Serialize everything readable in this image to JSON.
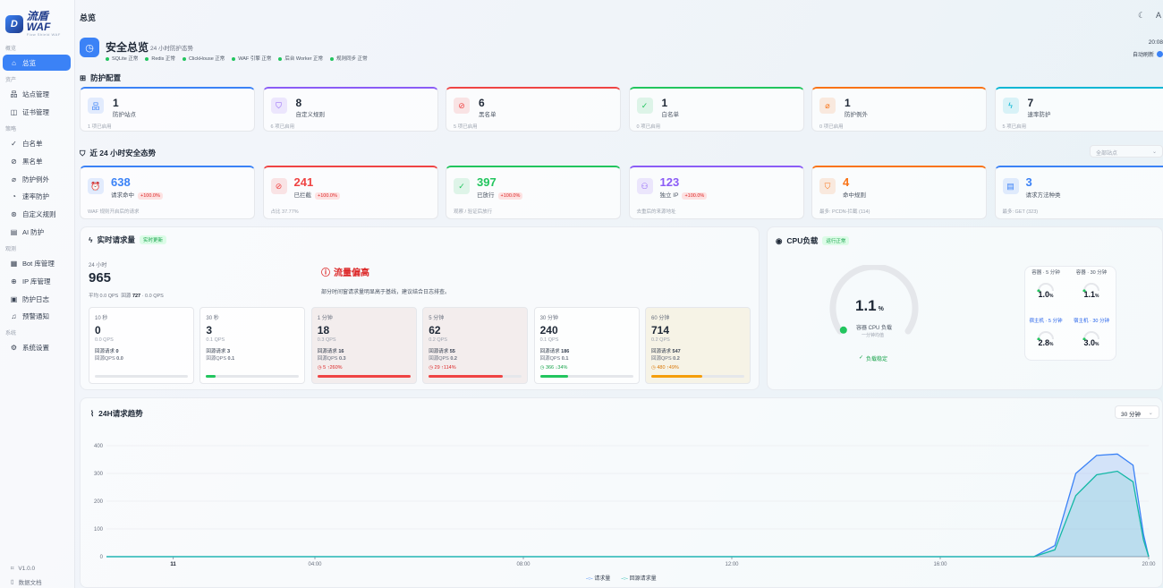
{
  "brand": {
    "name": "流盾 WAF",
    "tagline": "Flow Shield WAF"
  },
  "topbar": {
    "title": "总览"
  },
  "sidebar": {
    "groups": [
      "概览",
      "资产",
      "策略",
      "观测",
      "系统"
    ],
    "items": [
      {
        "label": "总览",
        "icon": "dashboard-icon"
      },
      {
        "label": "站点管理",
        "icon": "site-icon"
      },
      {
        "label": "证书管理",
        "icon": "cert-icon"
      },
      {
        "label": "白名单",
        "icon": "check-icon"
      },
      {
        "label": "黑名单",
        "icon": "block-icon"
      },
      {
        "label": "防护例外",
        "icon": "exception-icon"
      },
      {
        "label": "速率防护",
        "icon": "rate-icon"
      },
      {
        "label": "自定义规则",
        "icon": "rule-icon"
      },
      {
        "label": "AI 防护",
        "icon": "ai-icon"
      },
      {
        "label": "Bot 库管理",
        "icon": "bot-icon"
      },
      {
        "label": "IP 库管理",
        "icon": "globe-icon"
      },
      {
        "label": "防护日志",
        "icon": "log-icon"
      },
      {
        "label": "预警通知",
        "icon": "bell-icon"
      },
      {
        "label": "系统设置",
        "icon": "gear-icon"
      }
    ],
    "version": "V1.0.0",
    "docs": "数据文档"
  },
  "hero": {
    "title": "安全总览",
    "subtitle": "24 小时防护态势",
    "statuses": [
      "SQLite 正常",
      "Redis 正常",
      "ClickHouse 正常",
      "WAF 引擎 正常",
      "后台 Worker 正常",
      "规则同步 正常"
    ],
    "time": "20:08",
    "autorefresh": "自动刷新"
  },
  "protection": {
    "title": "防护配置",
    "cards": [
      {
        "num": "1",
        "label": "防护站点",
        "foot": "1 项已启用",
        "color": "#3b82f6",
        "icon": "site-icon",
        "glyph": "品"
      },
      {
        "num": "8",
        "label": "自定义规则",
        "foot": "6 项已启用",
        "color": "#8b5cf6",
        "icon": "shield-icon",
        "glyph": "⛉"
      },
      {
        "num": "6",
        "label": "黑名单",
        "foot": "5 项已启用",
        "color": "#ef4444",
        "icon": "block-icon",
        "glyph": "⊘"
      },
      {
        "num": "1",
        "label": "白名单",
        "foot": "0 项已启用",
        "color": "#22c55e",
        "icon": "check-icon",
        "glyph": "✓"
      },
      {
        "num": "1",
        "label": "防护例外",
        "foot": "0 项已启用",
        "color": "#f97316",
        "icon": "exception-icon",
        "glyph": "⌀"
      },
      {
        "num": "7",
        "label": "速率防护",
        "foot": "5 项已启用",
        "color": "#06b6d4",
        "icon": "bolt-icon",
        "glyph": "ϟ"
      }
    ]
  },
  "security": {
    "title": "近 24 小时安全态势",
    "select_placeholder": "全部站点",
    "cards": [
      {
        "num": "638",
        "label": "请求命中",
        "badge": "+100.0%",
        "foot": "WAF 规则开启后的请求",
        "color": "#3b82f6",
        "icon": "alarm-icon",
        "glyph": "⏰"
      },
      {
        "num": "241",
        "label": "已拦截",
        "badge": "+100.0%",
        "foot": "占比 37.77%",
        "color": "#ef4444",
        "icon": "block-icon",
        "glyph": "⊘"
      },
      {
        "num": "397",
        "label": "已放行",
        "badge": "+100.0%",
        "foot": "观察 / 验证后放行",
        "color": "#22c55e",
        "icon": "check-icon",
        "glyph": "✓"
      },
      {
        "num": "123",
        "label": "独立 IP",
        "badge": "+100.0%",
        "foot": "去重后的来源地址",
        "color": "#8b5cf6",
        "icon": "user-icon",
        "glyph": "⚇"
      },
      {
        "num": "4",
        "label": "命中规则",
        "badge": "",
        "foot": "最多: PCDN-拦截 (114)",
        "color": "#f97316",
        "icon": "shield-icon",
        "glyph": "⛉"
      },
      {
        "num": "3",
        "label": "请求方法种类",
        "badge": "",
        "foot": "最多: GET (323)",
        "color": "#3b82f6",
        "icon": "file-icon",
        "glyph": "▤"
      }
    ]
  },
  "realtime": {
    "title": "实时请求量",
    "tag": "实时更新",
    "period": "24 小时",
    "total": "965",
    "qps": "平均 0.0 QPS",
    "origin_label": "回源",
    "origin_value": "727",
    "origin_qps": "· 0.0 QPS",
    "alert_title": "流量偏高",
    "alert_desc": "部分时间窗请求量明显高于基线，建议结合日志排查。",
    "windows": [
      {
        "t": "10 秒",
        "v": "0",
        "q": "0.0 QPS",
        "s1a": "回源请求",
        "s1b": "0",
        "s2a": "回源QPS",
        "s2b": "0.0",
        "ch": "",
        "fill": 0,
        "color": "#22c55e",
        "bg": "rgba(255,255,255,0.75)"
      },
      {
        "t": "30 秒",
        "v": "3",
        "q": "0.1 QPS",
        "s1a": "回源请求",
        "s1b": "3",
        "s2a": "回源QPS",
        "s2b": "0.1",
        "ch": "",
        "fill": 0.1,
        "color": "#22c55e",
        "bg": "rgba(255,255,255,0.75)"
      },
      {
        "t": "1 分钟",
        "v": "18",
        "q": "0.3 QPS",
        "s1a": "回源请求",
        "s1b": "16",
        "s2a": "回源QPS",
        "s2b": "0.3",
        "ch": "5 ↑260%",
        "fill": 1,
        "color": "#ef4444",
        "bg": "#f3eded"
      },
      {
        "t": "5 分钟",
        "v": "62",
        "q": "0.2 QPS",
        "s1a": "回源请求",
        "s1b": "55",
        "s2a": "回源QPS",
        "s2b": "0.2",
        "ch": "29 ↑114%",
        "fill": 0.8,
        "color": "#ef4444",
        "bg": "#f3eded"
      },
      {
        "t": "30 分钟",
        "v": "240",
        "q": "0.1 QPS",
        "s1a": "回源请求",
        "s1b": "186",
        "s2a": "回源QPS",
        "s2b": "0.1",
        "ch": "366 ↓34%",
        "fill": 0.3,
        "color": "#22c55e",
        "bg": "rgba(255,255,255,0.75)"
      },
      {
        "t": "60 分钟",
        "v": "714",
        "q": "0.2 QPS",
        "s1a": "回源请求",
        "s1b": "547",
        "s2a": "回源QPS",
        "s2b": "0.2",
        "ch": "480 ↑49%",
        "fill": 0.55,
        "color": "#f59e0b",
        "bg": "#f6f3e6"
      }
    ]
  },
  "cpu": {
    "title": "CPU负载",
    "tag": "运行正常",
    "value": "1.1",
    "unit": "%",
    "label": "容器 CPU 负载",
    "sublabel": "一分钟均值",
    "stable": "负载稳定",
    "gauge_fraction": 0.011,
    "minis": [
      {
        "label": "容器 · 5 分钟",
        "value": "1.0",
        "unit": "%"
      },
      {
        "label": "容器 · 30 分钟",
        "value": "1.1",
        "unit": "%"
      },
      {
        "label": "宿主机 · 5 分钟",
        "value": "2.8",
        "unit": "%"
      },
      {
        "label": "宿主机 · 30 分钟",
        "value": "3.0",
        "unit": "%"
      }
    ]
  },
  "trend": {
    "title": "24H请求趋势",
    "interval": "30 分钟",
    "legend": [
      "请求量",
      "回源请求量"
    ]
  },
  "chart_data": {
    "type": "area",
    "title": "24H请求趋势",
    "x_ticks": [
      "11",
      "04:00",
      "08:00",
      "12:00",
      "16:00",
      "20:00"
    ],
    "ylim": [
      0,
      400
    ],
    "y_ticks": [
      0,
      100,
      200,
      300,
      400
    ],
    "series": [
      {
        "name": "请求量",
        "color": "#3b82f6",
        "points": [
          [
            0,
            0
          ],
          [
            17.8,
            0
          ],
          [
            18.2,
            40
          ],
          [
            18.6,
            300
          ],
          [
            19.0,
            365
          ],
          [
            19.4,
            370
          ],
          [
            19.7,
            330
          ],
          [
            19.9,
            80
          ],
          [
            20.0,
            0
          ]
        ]
      },
      {
        "name": "回源请求量",
        "color": "#14b8a6",
        "points": [
          [
            0,
            0
          ],
          [
            17.8,
            0
          ],
          [
            18.2,
            25
          ],
          [
            18.6,
            220
          ],
          [
            19.0,
            295
          ],
          [
            19.4,
            308
          ],
          [
            19.7,
            270
          ],
          [
            19.9,
            60
          ],
          [
            20.0,
            0
          ]
        ]
      }
    ],
    "grid": true,
    "legend_position": "bottom"
  }
}
